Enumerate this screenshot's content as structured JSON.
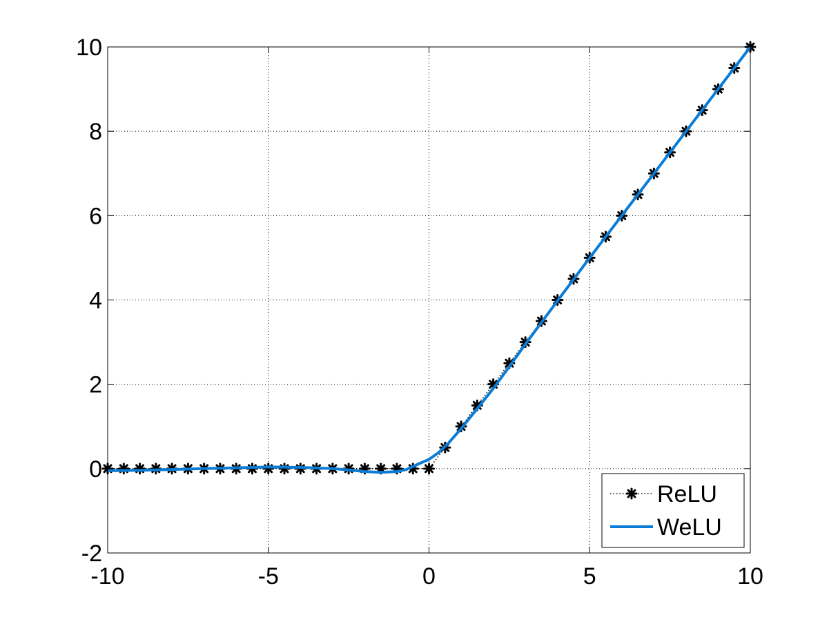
{
  "chart_data": {
    "type": "line",
    "title": "",
    "xlabel": "",
    "ylabel": "",
    "xlim": [
      -10,
      10
    ],
    "ylim": [
      -2,
      10
    ],
    "xticks": [
      -10,
      -5,
      0,
      5,
      10
    ],
    "yticks": [
      -2,
      0,
      2,
      4,
      6,
      8,
      10
    ],
    "xtick_labels": [
      "-10",
      "-5",
      "0",
      "5",
      "10"
    ],
    "ytick_labels": [
      "-2",
      "0",
      "2",
      "4",
      "6",
      "8",
      "10"
    ],
    "grid": true,
    "legend_position": "bottom-right",
    "series": [
      {
        "name": "ReLU",
        "style": "dotted line with asterisk markers",
        "color": "#000000",
        "x": [
          -10,
          -9.5,
          -9,
          -8.5,
          -8,
          -7.5,
          -7,
          -6.5,
          -6,
          -5.5,
          -5,
          -4.5,
          -4,
          -3.5,
          -3,
          -2.5,
          -2,
          -1.5,
          -1,
          -0.5,
          0,
          0.5,
          1,
          1.5,
          2,
          2.5,
          3,
          3.5,
          4,
          4.5,
          5,
          5.5,
          6,
          6.5,
          7,
          7.5,
          8,
          8.5,
          9,
          9.5,
          10
        ],
        "y": [
          0,
          0,
          0,
          0,
          0,
          0,
          0,
          0,
          0,
          0,
          0,
          0,
          0,
          0,
          0,
          0,
          0,
          0,
          0,
          0,
          0,
          0.5,
          1,
          1.5,
          2,
          2.5,
          3,
          3.5,
          4,
          4.5,
          5,
          5.5,
          6,
          6.5,
          7,
          7.5,
          8,
          8.5,
          9,
          9.5,
          10
        ]
      },
      {
        "name": "WeLU",
        "style": "solid line",
        "color": "#0A7CD6",
        "x": [
          -10,
          -9,
          -8,
          -7,
          -6,
          -5,
          -4,
          -3,
          -2.5,
          -2,
          -1.5,
          -1,
          -0.7,
          -0.5,
          -0.3,
          0,
          0.3,
          0.6,
          1,
          1.5,
          2,
          2.5,
          3,
          4,
          5,
          6,
          7,
          8,
          9,
          10
        ],
        "y": [
          -0.05,
          -0.04,
          -0.02,
          0,
          0.02,
          0.04,
          0.03,
          0,
          -0.03,
          -0.07,
          -0.09,
          -0.07,
          -0.02,
          0.05,
          0.12,
          0.22,
          0.38,
          0.6,
          0.95,
          1.42,
          1.9,
          2.42,
          2.95,
          3.98,
          5.0,
          6.0,
          7.0,
          8.0,
          9.0,
          10.0
        ]
      }
    ]
  }
}
